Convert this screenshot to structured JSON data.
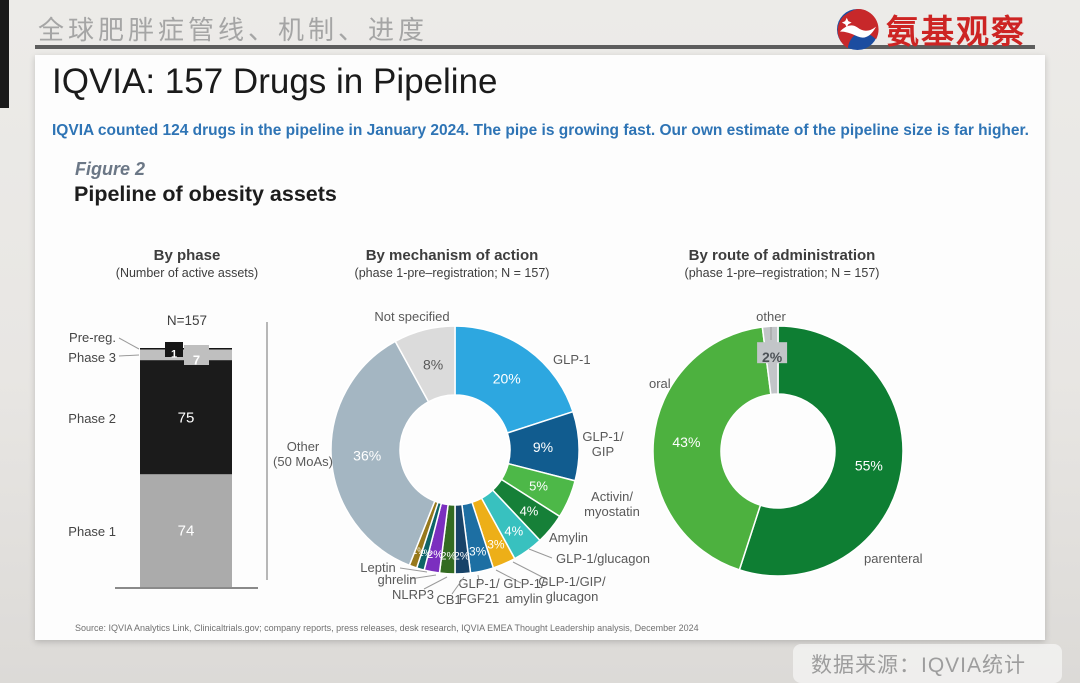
{
  "header": {
    "page_title_cn": "全球肥胖症管线、机制、进度",
    "logo_text": "氨基观察"
  },
  "card": {
    "title": "IQVIA: 157 Drugs in Pipeline",
    "subtitle": "IQVIA counted 124 drugs in the pipeline in January 2024. The pipe is growing fast. Our own estimate of the pipeline size is far higher.",
    "figure_label": "Figure 2",
    "figure_title": "Pipeline of obesity assets",
    "source": "Source: IQVIA Analytics Link, Clinicaltrials.gov; company reports, press releases, desk research, IQVIA EMEA Thought Leadership analysis, December 2024"
  },
  "footer": {
    "watermark": "数据来源：IQVIA统计"
  },
  "chart_data": [
    {
      "id": "by-phase",
      "type": "bar",
      "title": "By phase",
      "subtitle": "(Number of active assets)",
      "n_label": "N=157",
      "total": 157,
      "categories": [
        "Pre-reg.",
        "Phase 3",
        "Phase 2",
        "Phase 1"
      ],
      "values": [
        1,
        7,
        75,
        74
      ],
      "colors": [
        "#161616",
        "#bfbfbf",
        "#1b1b1b",
        "#ababab"
      ],
      "value_label_color": "#ffffff"
    },
    {
      "id": "by-moa",
      "type": "donut",
      "title": "By mechanism of action",
      "subtitle": "(phase 1-pre–registration; N = 157)",
      "slices": [
        {
          "label": "GLP-1",
          "pct": 20,
          "color": "#2da7e0"
        },
        {
          "label": "GLP-1/\nGIP",
          "pct": 9,
          "color": "#115c8f"
        },
        {
          "label": "Activin/\nmyostatin",
          "pct": 5,
          "color": "#4db848"
        },
        {
          "label": "Amylin",
          "pct": 4,
          "color": "#168038"
        },
        {
          "label": "GLP-1/glucagon",
          "pct": 4,
          "color": "#38c1bf"
        },
        {
          "label": "GLP-1/GIP/\nglucagon",
          "pct": 3,
          "color": "#edaf18"
        },
        {
          "label": "GLP-1/\namylin",
          "pct": 3,
          "color": "#1d6fa3"
        },
        {
          "label": "GLP-1/\nFGF21",
          "pct": 2,
          "color": "#184368"
        },
        {
          "label": "CB1",
          "pct": 2,
          "color": "#336b21"
        },
        {
          "label": "NLRP3",
          "pct": 2,
          "color": "#7b2fbf"
        },
        {
          "label": "ghrelin",
          "pct": 1,
          "color": "#0e6467"
        },
        {
          "label": "Leptin",
          "pct": 1,
          "color": "#97791c"
        },
        {
          "label": "Other\n(50 MoAs)",
          "pct": 36,
          "color": "#a4b6c2"
        },
        {
          "label": "Not specified",
          "pct": 8,
          "color": "#dbdbdb",
          "pct_color": "#595959"
        }
      ]
    },
    {
      "id": "by-route",
      "type": "donut",
      "title": "By route of administration",
      "subtitle": "(phase 1-pre–registration; N = 157)",
      "slices": [
        {
          "label": "parenteral",
          "pct": 55,
          "color": "#0e7e33"
        },
        {
          "label": "oral",
          "pct": 43,
          "color": "#4db13f"
        },
        {
          "label": "other",
          "pct": 2,
          "color": "#c2c5c8",
          "pct_color": "#4d5257",
          "pct_boxed": true
        }
      ]
    }
  ]
}
